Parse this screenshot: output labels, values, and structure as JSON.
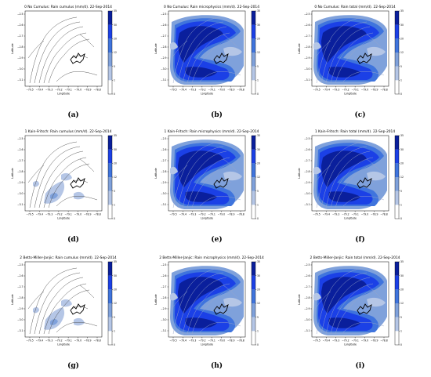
{
  "colors": {
    "levels": [
      "#ffffff",
      "#b5c6e6",
      "#7fa1db",
      "#3f74dd",
      "#1b40e6",
      "#0a1f9c"
    ],
    "contour": "#4a4a4a",
    "terrain_outline": "#000000"
  },
  "colorbar_ticks": [
    "35",
    "30",
    "20",
    "12",
    "5",
    "1",
    "0"
  ],
  "axis": {
    "xlabel": "Longitude",
    "ylabel": "Latitude",
    "xticks": [
      "−79.5",
      "−79.4",
      "−79.3",
      "−79.2",
      "−79.1",
      "−79.0",
      "−78.9",
      "−78.8"
    ],
    "yticks": [
      "−2.5",
      "−2.6",
      "−2.7",
      "−2.8",
      "−2.9",
      "−3.0",
      "−3.1"
    ]
  },
  "panels": [
    {
      "title": "0 No Cumulus: Rain cumulus (mm/d). 22-Sep-2014",
      "label": "(a)",
      "rain": "none"
    },
    {
      "title": "0 No Cumulus: Rain microphysics (mm/d). 22-Sep-2014",
      "label": "(b)",
      "rain": "heavy"
    },
    {
      "title": "0 No Cumulus: Rain total (mm/d). 22-Sep-2014",
      "label": "(c)",
      "rain": "heavy"
    },
    {
      "title": "1 Kain-Fritsch: Rain cumulus (mm/d). 22-Sep-2014",
      "label": "(d)",
      "rain": "light"
    },
    {
      "title": "1 Kain-Fritsch: Rain microphysics (mm/d). 22-Sep-2014",
      "label": "(e)",
      "rain": "heavy"
    },
    {
      "title": "1 Kain-Fritsch: Rain total (mm/d). 22-Sep-2014",
      "label": "(f)",
      "rain": "heavy"
    },
    {
      "title": "2 Betts-Miller-Janjic: Rain cumulus (mm/d). 22-Sep-2014",
      "label": "(g)",
      "rain": "light"
    },
    {
      "title": "2 Betts-Miller-Janjic: Rain microphysics (mm/d). 22-Sep-2014",
      "label": "(h)",
      "rain": "heavy"
    },
    {
      "title": "2 Betts-Miller-Janjic: Rain total (mm/d). 22-Sep-2014",
      "label": "(i)",
      "rain": "heavy"
    }
  ],
  "chart_data": {
    "type": "heatmap",
    "xlabel": "Longitude",
    "ylabel": "Latitude",
    "xlim": [
      -79.55,
      -78.75
    ],
    "ylim": [
      -3.18,
      -2.48
    ],
    "colorbar_levels_mm_per_day": [
      0,
      1,
      5,
      12,
      20,
      30,
      35
    ],
    "date": "22-Sep-2014"
  }
}
